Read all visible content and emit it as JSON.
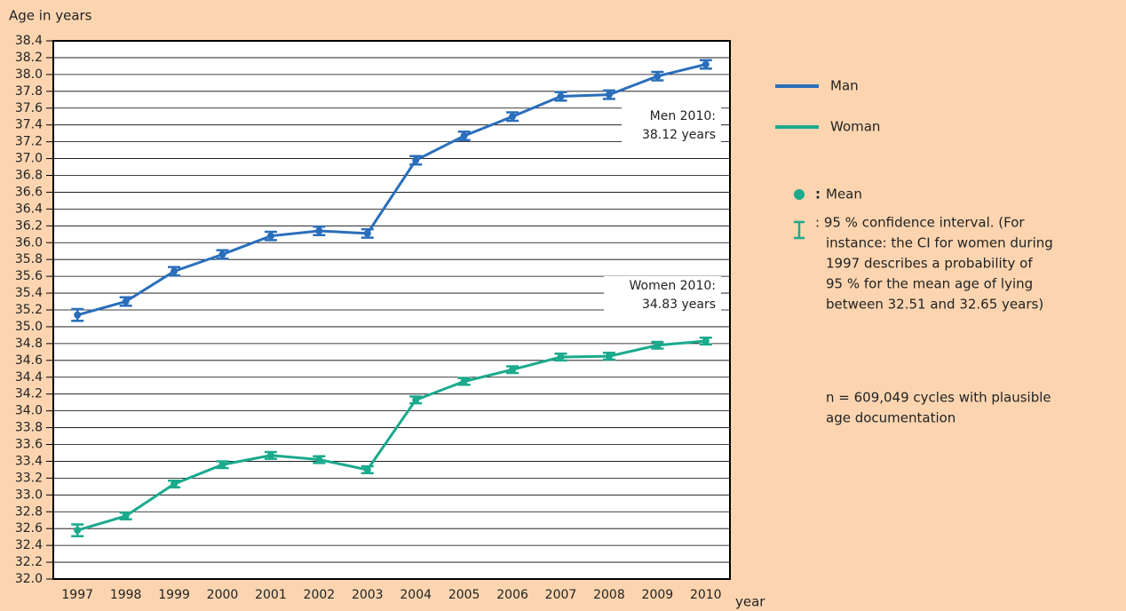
{
  "chart_data": {
    "type": "line",
    "y_label": "Age in years",
    "x_label": "year",
    "categories": [
      "1997",
      "1998",
      "1999",
      "2000",
      "2001",
      "2002",
      "2003",
      "2004",
      "2005",
      "2006",
      "2007",
      "2008",
      "2009",
      "2010"
    ],
    "series": [
      {
        "name": "Man",
        "color": "#2a6ebb",
        "values": [
          35.14,
          35.3,
          35.66,
          35.86,
          36.08,
          36.14,
          36.11,
          36.98,
          37.27,
          37.5,
          37.74,
          37.76,
          37.98,
          38.12
        ],
        "errors": [
          0.07,
          0.05,
          0.05,
          0.05,
          0.05,
          0.05,
          0.05,
          0.05,
          0.05,
          0.05,
          0.05,
          0.05,
          0.05,
          0.05
        ]
      },
      {
        "name": "Woman",
        "color": "#1aaa8c",
        "values": [
          32.58,
          32.75,
          33.13,
          33.36,
          33.47,
          33.42,
          33.3,
          34.13,
          34.35,
          34.49,
          34.64,
          34.65,
          34.78,
          34.83
        ],
        "errors": [
          0.07,
          0.04,
          0.04,
          0.04,
          0.04,
          0.04,
          0.04,
          0.04,
          0.04,
          0.04,
          0.04,
          0.04,
          0.04,
          0.04
        ]
      }
    ],
    "ylim": [
      32.0,
      38.4
    ],
    "yticks": [
      {
        "value": 32,
        "label": "32.0"
      },
      32.2,
      32.4,
      32.6,
      32.8,
      {
        "value": 33,
        "label": "33.0"
      },
      33.2,
      33.4,
      33.6,
      33.8,
      {
        "value": 34,
        "label": "34.0"
      },
      34.2,
      34.4,
      34.6,
      34.8,
      {
        "value": 35,
        "label": "35.0"
      },
      35.2,
      35.4,
      35.6,
      35.8,
      {
        "value": 36,
        "label": "36.0"
      },
      36.2,
      36.4,
      36.6,
      36.8,
      {
        "value": 37,
        "label": "37.0"
      },
      37.2,
      37.4,
      37.6,
      37.8,
      {
        "value": 38,
        "label": "38.0"
      },
      38.2,
      38.4
    ],
    "grid": true,
    "annotations": [
      {
        "lines": [
          "Men 2010:",
          "38.12 years"
        ]
      },
      {
        "lines": [
          "Women 2010:",
          "34.83 years"
        ]
      }
    ],
    "mean_note": {
      "symbol": ":",
      "text": "Mean"
    },
    "ci_note": [
      ": 95 % confidence interval. (For",
      "instance: the CI for women during",
      "1997 describes a probability of",
      "95 % for the mean age of lying",
      "between 32.51 and 32.65 years)"
    ],
    "sample_note": [
      "n = 609,049 cycles with plausible",
      "age documentation"
    ]
  }
}
